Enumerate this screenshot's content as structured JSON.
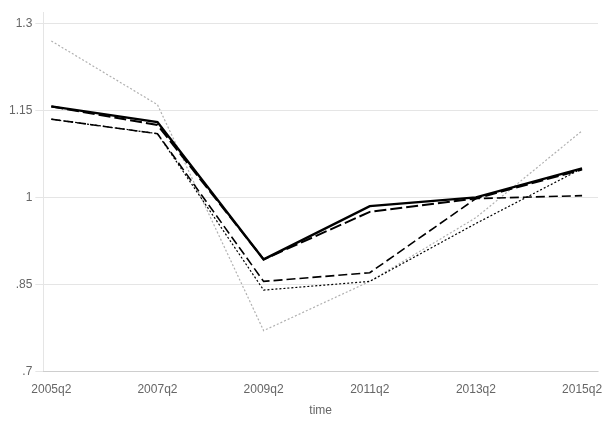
{
  "chart_data": {
    "type": "line",
    "x_label": "time",
    "x": [
      2005.5,
      2007.5,
      2009.5,
      2011.5,
      2013.5,
      2015.5
    ],
    "series": [
      {
        "color": "#b0b0b0",
        "line_style": "dotted",
        "values": [
          1.27,
          1.16,
          0.77,
          0.855,
          0.965,
          1.115
        ]
      },
      {
        "color": "#000000",
        "line_style": "dashed",
        "values": [
          1.135,
          1.11,
          0.855,
          0.87,
          0.998,
          1.003
        ]
      },
      {
        "color": "#000000",
        "line_style": "dotted",
        "values": [
          1.135,
          1.11,
          0.84,
          0.855,
          0.955,
          1.05
        ]
      },
      {
        "color": "#000000",
        "line_style": "longdash",
        "values": [
          1.157,
          1.125,
          0.893,
          0.975,
          0.998,
          1.048
        ]
      },
      {
        "color": "#000000",
        "line_style": "solid",
        "values": [
          1.157,
          1.13,
          0.893,
          0.985,
          1.0,
          1.05
        ]
      }
    ],
    "xlim": [
      2005.35,
      2015.8
    ],
    "xticks": [
      {
        "value": 2005.5,
        "label": "2005q2"
      },
      {
        "value": 2007.5,
        "label": "2007q2"
      },
      {
        "value": 2009.5,
        "label": "2009q2"
      },
      {
        "value": 2011.5,
        "label": "2011q2"
      },
      {
        "value": 2013.5,
        "label": "2013q2"
      },
      {
        "value": 2015.5,
        "label": "2015q2"
      }
    ],
    "ylim": [
      0.7,
      1.32
    ],
    "yticks": [
      {
        "value": 0.7,
        "label": ".7"
      },
      {
        "value": 0.85,
        "label": ".85"
      },
      1,
      1.15,
      1.3
    ],
    "grid": "y"
  }
}
